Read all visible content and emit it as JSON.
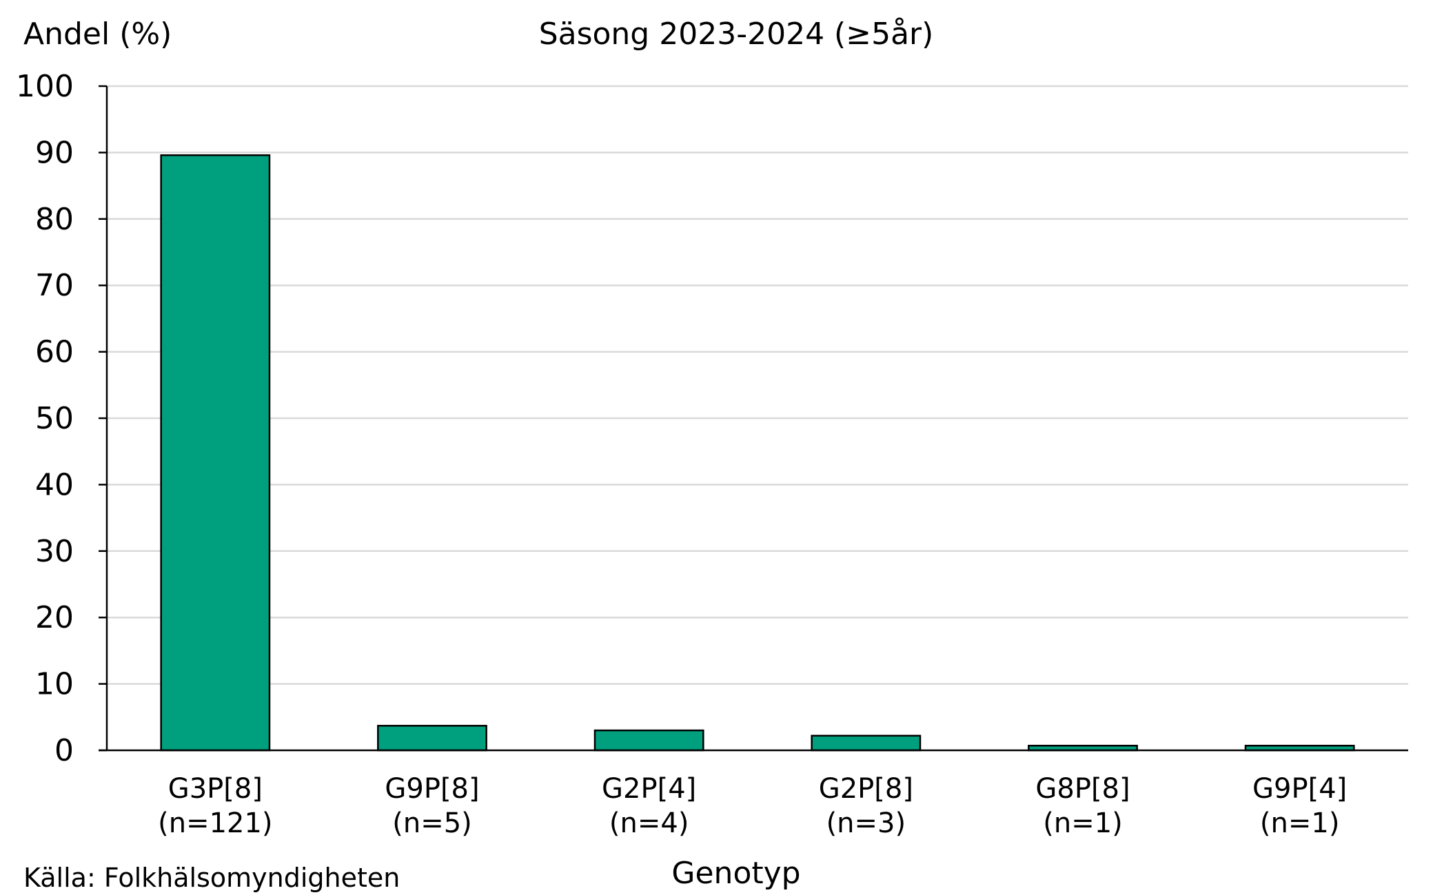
{
  "chart_data": {
    "type": "bar",
    "title": "Säsong 2023-2024 (≥5år)",
    "ylabel": "Andel (%)",
    "xlabel": "Genotyp",
    "categories": [
      [
        "G3P[8]",
        "(n=121)"
      ],
      [
        "G9P[8]",
        "(n=5)"
      ],
      [
        "G2P[4]",
        "(n=4)"
      ],
      [
        "G2P[8]",
        "(n=3)"
      ],
      [
        "G8P[8]",
        "(n=1)"
      ],
      [
        "G9P[4]",
        "(n=1)"
      ]
    ],
    "values": [
      89.6,
      3.7,
      3.0,
      2.2,
      0.7,
      0.7
    ],
    "ylim": [
      0,
      100
    ],
    "yticks": [
      0,
      10,
      20,
      30,
      40,
      50,
      60,
      70,
      80,
      90,
      100
    ],
    "grid": true,
    "bar_color": "#00A07E",
    "source": "Källa: Folkhälsomyndigheten"
  }
}
